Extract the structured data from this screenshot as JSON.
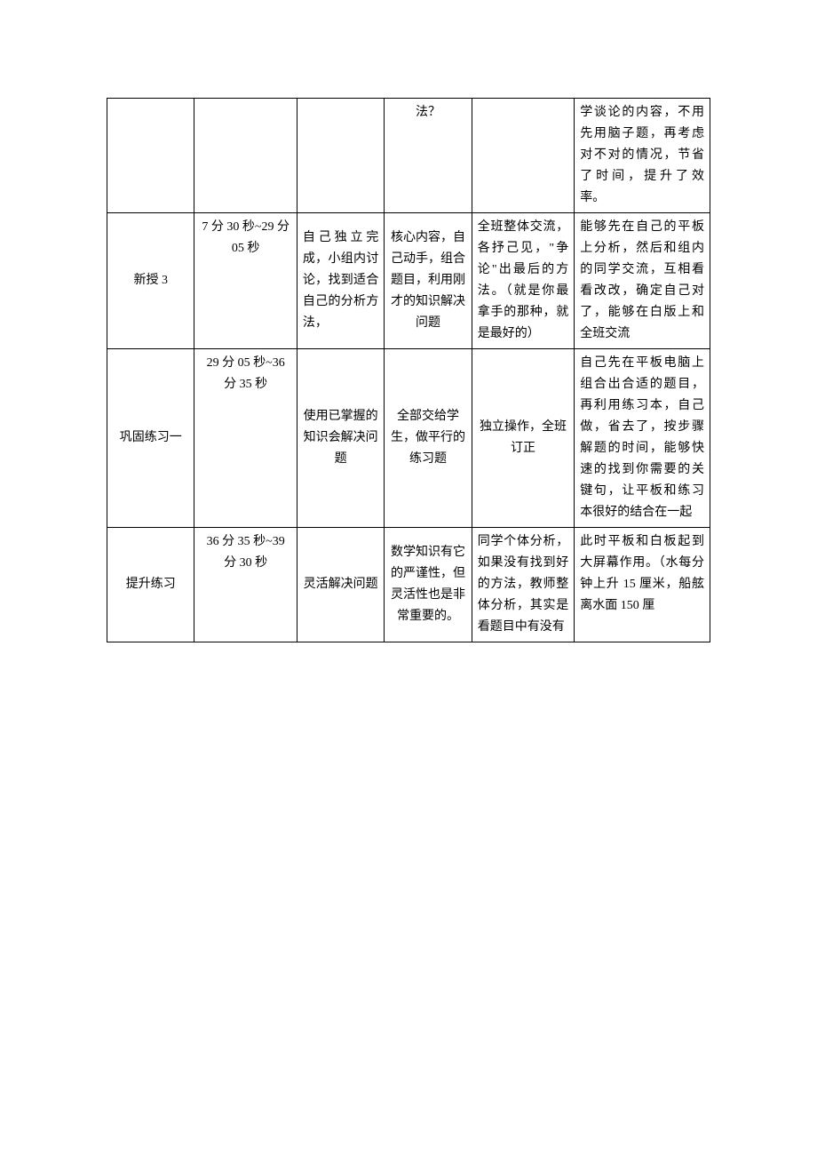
{
  "table": {
    "colWidths": [
      "14.5%",
      "17%",
      "14.5%",
      "14.5%",
      "17%",
      "22.5%"
    ],
    "rows": [
      {
        "c1": "",
        "c2": "",
        "c3": "",
        "c4": "法？",
        "c5": "",
        "c6": "学谈论的内容，不用先用脑子题，再考虑对不对的情况，节省了时间，提升了效率。",
        "c1_class": "col-label",
        "c2_class": "col-time",
        "c3_class": "col-c",
        "c4_class": "col-c top",
        "c5_class": "col-c",
        "c6_class": "top"
      },
      {
        "c1": "新授 3",
        "c2": "7 分 30 秒~29 分 05 秒",
        "c3": "自己独立完成，小组内讨论，找到适合自己的分析方法，",
        "c4": "核心内容，自己动手，组合题目，利用刚才的知识解决问题",
        "c5": "全班整体交流，各抒己见，\"争论\"出最后的方法。（就是你最拿手的那种，就是最好的）",
        "c6": "能够先在自己的平板上分析，然后和组内的同学交流，互相看看改改，确定自己对了，能够在白版上和全班交流",
        "c1_class": "col-label",
        "c2_class": "col-time",
        "c3_class": "",
        "c4_class": "col-c",
        "c5_class": "",
        "c6_class": ""
      },
      {
        "c1": "巩固练习一",
        "c2": "29 分 05 秒~36 分 35 秒",
        "c3": "使用已掌握的知识会解决问题",
        "c4": "全部交给学生，做平行的练习题",
        "c5": "独立操作，全班订正",
        "c6": "自己先在平板电脑上组合出合适的题目，再利用练习本，自己做，省去了，按步骤解题的时间，能够快速的找到你需要的关键句，让平板和练习本很好的结合在一起",
        "c1_class": "col-label",
        "c2_class": "col-time",
        "c3_class": "col-c",
        "c4_class": "col-c",
        "c5_class": "col-c",
        "c6_class": ""
      },
      {
        "c1": "提升练习",
        "c2": "36 分 35 秒~39 分 30 秒",
        "c3": "灵活解决问题",
        "c4": "数学知识有它的严谨性，但灵活性也是非常重要的。",
        "c5": "同学个体分析，如果没有找到好的方法，教师整体分析，其实是看题目中有没有",
        "c6": "此时平板和白板起到大屏幕作用。（水每分钟上升 15 厘米，船舷离水面 150 厘",
        "c1_class": "col-label",
        "c2_class": "col-time",
        "c3_class": "col-c",
        "c4_class": "col-c",
        "c5_class": "",
        "c6_class": "top"
      }
    ]
  }
}
